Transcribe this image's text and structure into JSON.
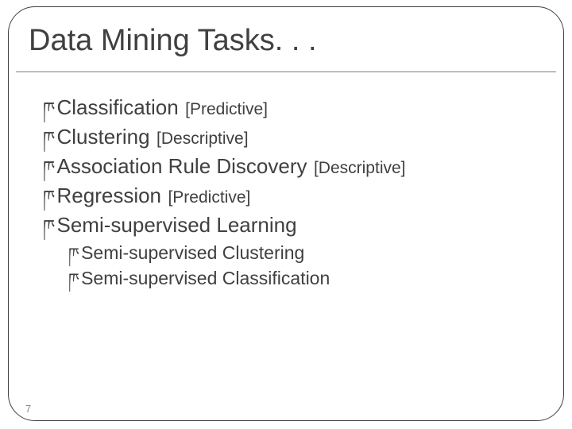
{
  "slide": {
    "title": "Data Mining Tasks. . .",
    "title_fontsize": 38,
    "title_color": "#404040",
    "text_color": "#404040",
    "main_fontsize": 26,
    "tag_fontsize": 21,
    "sub_fontsize": 23,
    "bullet_glyph": "ཫ",
    "background_color": "#ffffff",
    "border_color": "#404040",
    "border_radius": 34,
    "divider_color": "#7f7f7f",
    "items": [
      {
        "label": "Classification",
        "tag": "[Predictive]"
      },
      {
        "label": "Clustering",
        "tag": "[Descriptive]"
      },
      {
        "label": "Association Rule Discovery",
        "tag": "[Descriptive]"
      },
      {
        "label": "Regression",
        "tag": "[Predictive]"
      },
      {
        "label": "Semi-supervised Learning",
        "tag": ""
      }
    ],
    "subitems": [
      {
        "label": "Semi-supervised Clustering"
      },
      {
        "label": "Semi-supervised Classification"
      }
    ],
    "page_number": "7",
    "page_number_color": "#8a8a8a",
    "page_number_fontsize": 13
  }
}
